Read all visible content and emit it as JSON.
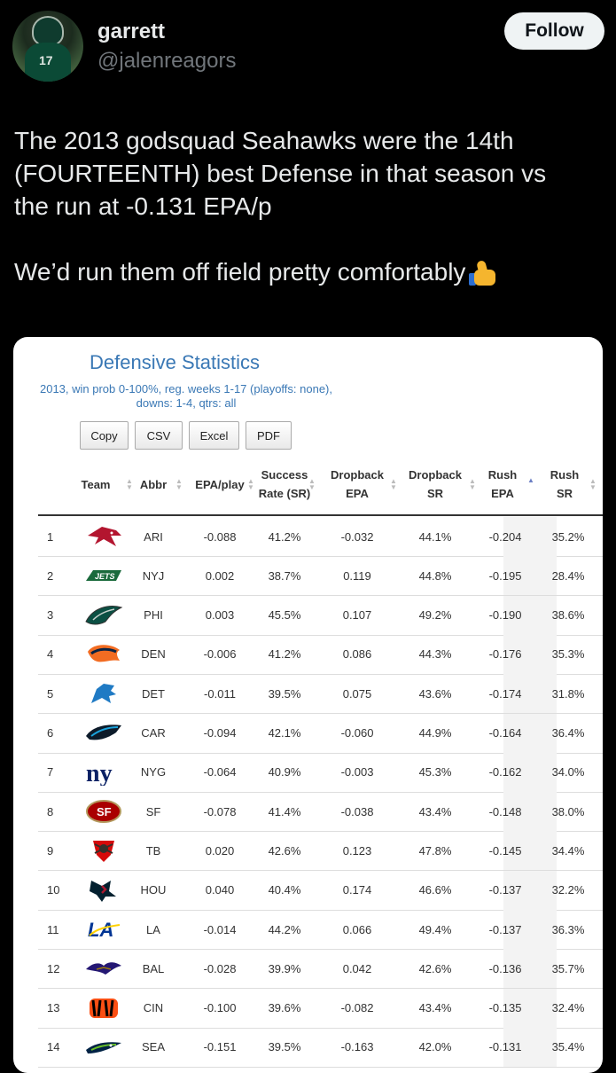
{
  "post": {
    "display_name": "garrett",
    "handle": "@jalenreagors",
    "follow_label": "Follow",
    "avatar_number": "17",
    "text_line1": "The 2013 godsquad Seahawks were the 14th",
    "text_line2": "(FOURTEENTH) best Defense in that season vs",
    "text_line3": "the run at -0.131 EPA/p",
    "text_line4": "We’d run them off field pretty comfortably"
  },
  "table": {
    "title": "Defensive Statistics",
    "subtitle": "2013, win prob 0-100%, reg. weeks 1-17 (playoffs: none), downs: 1-4, qtrs: all",
    "buttons": [
      "Copy",
      "CSV",
      "Excel",
      "PDF"
    ],
    "columns": [
      "Team",
      "Abbr",
      "EPA/play",
      "Success Rate (SR)",
      "Dropback EPA",
      "Dropback SR",
      "Rush EPA",
      "Rush SR"
    ],
    "rows": [
      {
        "rank": "1",
        "logo": "cardinals-logo",
        "abbr": "ARI",
        "epa": "-0.088",
        "sr": "41.2%",
        "db_epa": "-0.032",
        "db_sr": "44.1%",
        "rush_epa": "-0.204",
        "rush_sr": "35.2%"
      },
      {
        "rank": "2",
        "logo": "jets-logo",
        "abbr": "NYJ",
        "epa": "0.002",
        "sr": "38.7%",
        "db_epa": "0.119",
        "db_sr": "44.8%",
        "rush_epa": "-0.195",
        "rush_sr": "28.4%"
      },
      {
        "rank": "3",
        "logo": "eagles-logo",
        "abbr": "PHI",
        "epa": "0.003",
        "sr": "45.5%",
        "db_epa": "0.107",
        "db_sr": "49.2%",
        "rush_epa": "-0.190",
        "rush_sr": "38.6%"
      },
      {
        "rank": "4",
        "logo": "broncos-logo",
        "abbr": "DEN",
        "epa": "-0.006",
        "sr": "41.2%",
        "db_epa": "0.086",
        "db_sr": "44.3%",
        "rush_epa": "-0.176",
        "rush_sr": "35.3%"
      },
      {
        "rank": "5",
        "logo": "lions-logo",
        "abbr": "DET",
        "epa": "-0.011",
        "sr": "39.5%",
        "db_epa": "0.075",
        "db_sr": "43.6%",
        "rush_epa": "-0.174",
        "rush_sr": "31.8%"
      },
      {
        "rank": "6",
        "logo": "panthers-logo",
        "abbr": "CAR",
        "epa": "-0.094",
        "sr": "42.1%",
        "db_epa": "-0.060",
        "db_sr": "44.9%",
        "rush_epa": "-0.164",
        "rush_sr": "36.4%"
      },
      {
        "rank": "7",
        "logo": "giants-logo",
        "abbr": "NYG",
        "epa": "-0.064",
        "sr": "40.9%",
        "db_epa": "-0.003",
        "db_sr": "45.3%",
        "rush_epa": "-0.162",
        "rush_sr": "34.0%"
      },
      {
        "rank": "8",
        "logo": "49ers-logo",
        "abbr": "SF",
        "epa": "-0.078",
        "sr": "41.4%",
        "db_epa": "-0.038",
        "db_sr": "43.4%",
        "rush_epa": "-0.148",
        "rush_sr": "38.0%"
      },
      {
        "rank": "9",
        "logo": "buccaneers-logo",
        "abbr": "TB",
        "epa": "0.020",
        "sr": "42.6%",
        "db_epa": "0.123",
        "db_sr": "47.8%",
        "rush_epa": "-0.145",
        "rush_sr": "34.4%"
      },
      {
        "rank": "10",
        "logo": "texans-logo",
        "abbr": "HOU",
        "epa": "0.040",
        "sr": "40.4%",
        "db_epa": "0.174",
        "db_sr": "46.6%",
        "rush_epa": "-0.137",
        "rush_sr": "32.2%"
      },
      {
        "rank": "11",
        "logo": "rams-logo",
        "abbr": "LA",
        "epa": "-0.014",
        "sr": "44.2%",
        "db_epa": "0.066",
        "db_sr": "49.4%",
        "rush_epa": "-0.137",
        "rush_sr": "36.3%"
      },
      {
        "rank": "12",
        "logo": "ravens-logo",
        "abbr": "BAL",
        "epa": "-0.028",
        "sr": "39.9%",
        "db_epa": "0.042",
        "db_sr": "42.6%",
        "rush_epa": "-0.136",
        "rush_sr": "35.7%"
      },
      {
        "rank": "13",
        "logo": "bengals-logo",
        "abbr": "CIN",
        "epa": "-0.100",
        "sr": "39.6%",
        "db_epa": "-0.082",
        "db_sr": "43.4%",
        "rush_epa": "-0.135",
        "rush_sr": "32.4%"
      },
      {
        "rank": "14",
        "logo": "seahawks-logo",
        "abbr": "SEA",
        "epa": "-0.151",
        "sr": "39.5%",
        "db_epa": "-0.163",
        "db_sr": "42.0%",
        "rush_epa": "-0.131",
        "rush_sr": "35.4%"
      }
    ]
  }
}
